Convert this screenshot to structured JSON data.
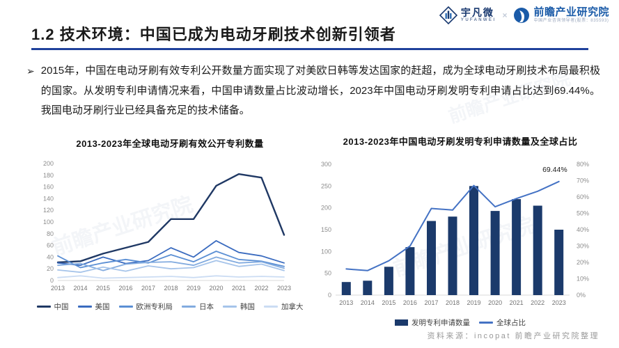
{
  "header": {
    "yufanwei": {
      "name": "宇凡微",
      "sub": "YUFANWEI"
    },
    "separator": "×",
    "qianzhan": {
      "name": "前瞻产业研究院",
      "sub": "中国产业咨询领导者(股票：835593)"
    }
  },
  "title": "1.2 技术环境：中国已成为电动牙刷技术创新引领者",
  "bullet": {
    "marker": "➢",
    "text": "2015年，中国在电动牙刷有效专利公开数量方面实现了对美欧日韩等发达国家的赶超，成为全球电动牙刷技术布局最积极的国家。从发明专利申请情况来看，中国申请数量占比波动增长，2023年中国电动牙刷发明专利申请占比达到69.44%。我国电动牙刷行业已经具备充足的技术储备。"
  },
  "footer": {
    "source": "资料来源：incopat 前瞻产业研究院整理"
  },
  "watermark_text": "前瞻产业研究院",
  "colors": {
    "title_rule": "#1F419B",
    "navy": "#1F3864",
    "bar_navy": "#1B3A6B",
    "line_blue": "#4472C4",
    "axis_label_gray": "#8C8C8C",
    "x_label_gray": "#737373",
    "axis_line_gray": "#D9D9D9"
  },
  "chart_data": [
    {
      "type": "line",
      "title": "2013-2023年全球电动牙刷有效公开专利数量",
      "categories": [
        "2013",
        "2014",
        "2015",
        "2016",
        "2017",
        "2018",
        "2019",
        "2020",
        "2021",
        "2022",
        "2023"
      ],
      "series": [
        {
          "name": "中国",
          "color": "#1F3864",
          "values": [
            31,
            33,
            46,
            56,
            66,
            105,
            105,
            162,
            182,
            176,
            78
          ]
        },
        {
          "name": "美国",
          "color": "#3A6BBF",
          "values": [
            30,
            26,
            40,
            29,
            34,
            56,
            40,
            68,
            48,
            42,
            30
          ]
        },
        {
          "name": "欧洲专利局",
          "color": "#5B8FD4",
          "values": [
            42,
            22,
            30,
            36,
            30,
            44,
            32,
            50,
            36,
            33,
            24
          ]
        },
        {
          "name": "日本",
          "color": "#82ABDF",
          "values": [
            26,
            29,
            17,
            28,
            31,
            32,
            26,
            40,
            30,
            32,
            21
          ]
        },
        {
          "name": "韩国",
          "color": "#A6C4EA",
          "values": [
            18,
            14,
            23,
            16,
            25,
            20,
            22,
            34,
            24,
            28,
            17
          ]
        },
        {
          "name": "加拿大",
          "color": "#CBDCF3",
          "values": [
            5,
            8,
            4,
            5,
            6,
            7,
            5,
            8,
            6,
            7,
            6
          ]
        }
      ],
      "ylim": [
        0,
        200
      ],
      "ytick_step": 20,
      "grid": false,
      "legend_position": "bottom"
    },
    {
      "type": "bar+line",
      "title": "2013-2023年中国电动牙刷发明专利申请数量及全球占比",
      "categories": [
        "2013",
        "2014",
        "2015",
        "2016",
        "2017",
        "2018",
        "2019",
        "2020",
        "2021",
        "2022",
        "2023"
      ],
      "bar_series": {
        "name": "发明专利申请数量",
        "color": "#1B3A6B",
        "values": [
          30,
          33,
          65,
          110,
          170,
          180,
          250,
          193,
          220,
          205,
          150
        ]
      },
      "line_series": {
        "name": "全球占比",
        "color": "#4472C4",
        "axis": "right",
        "values_pct": [
          16,
          15,
          21,
          30,
          53,
          52,
          67,
          54,
          59,
          63.5,
          69.44
        ]
      },
      "ylim_left": [
        0,
        300
      ],
      "ytick_step_left": 50,
      "ylim_right_pct": [
        0,
        80
      ],
      "ytick_step_right_pct": 10,
      "annotation": {
        "text": "69.44%",
        "at_category": "2023"
      },
      "grid": false,
      "legend_position": "bottom"
    }
  ]
}
